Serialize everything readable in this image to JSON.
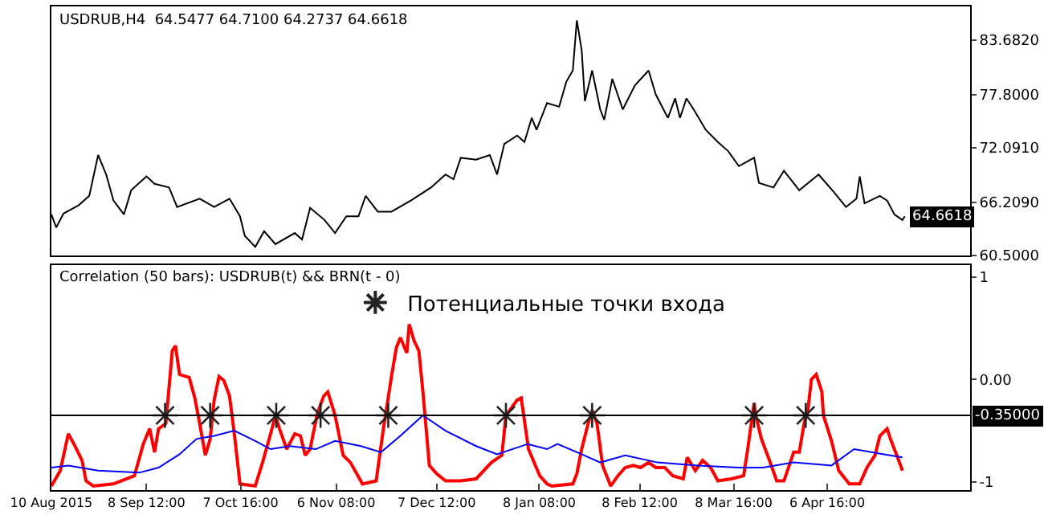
{
  "chart_data": [
    {
      "type": "line",
      "title": "USDRUB,H4  64.5477 64.7100 64.2737 64.6618",
      "color": "#000000",
      "xlim": [
        "2015-08-10",
        "2016-05-21"
      ],
      "ylim": [
        60.5,
        87.3
      ],
      "yticks": [
        {
          "value": 60.5,
          "label": "60.5000"
        },
        {
          "value": 66.209,
          "label": "66.2090"
        },
        {
          "value": 72.091,
          "label": "72.0910"
        },
        {
          "value": 77.8,
          "label": "77.8000"
        },
        {
          "value": 83.682,
          "label": "83.6820"
        }
      ],
      "tick_labels": "y",
      "legend": false,
      "x": [
        "2015-08-10T00:00",
        "2015-08-11T12:00",
        "2015-08-13T18:00",
        "2015-08-18T12:00",
        "2015-08-21T18:00",
        "2015-08-24T12:00",
        "2015-08-27T00:00",
        "2015-08-29T06:00",
        "2015-09-01T12:00",
        "2015-09-03T18:00",
        "2015-09-08T12:00",
        "2015-09-11T00:00",
        "2015-09-15T12:00",
        "2015-09-18T00:00",
        "2015-09-25T00:00",
        "2015-09-29T12:00",
        "2015-10-04T06:00",
        "2015-10-07T12:00",
        "2015-10-09T00:00",
        "2015-10-12T06:00",
        "2015-10-15T00:00",
        "2015-10-18T12:00",
        "2015-10-24T12:00",
        "2015-10-26T18:00",
        "2015-10-29T06:00",
        "2015-11-02T18:00",
        "2015-11-06T00:00",
        "2015-11-09T12:00",
        "2015-11-13T06:00",
        "2015-11-15T12:00",
        "2015-11-19T06:00",
        "2015-11-23T12:00",
        "2015-11-29T12:00",
        "2015-12-05T18:00",
        "2015-12-10T06:00",
        "2015-12-12T18:00",
        "2015-12-15T00:00",
        "2015-12-19T18:00",
        "2015-12-24T00:00",
        "2015-12-26T06:00",
        "2015-12-28T12:00",
        "2016-01-01T12:00",
        "2016-01-03T18:00",
        "2016-01-06T00:00",
        "2016-01-07T12:00",
        "2016-01-10T18:00",
        "2016-01-14T12:00",
        "2016-01-16T18:00",
        "2016-01-18T18:00",
        "2016-01-20T00:00",
        "2016-01-21T12:00",
        "2016-01-22T12:00",
        "2016-01-24T18:00",
        "2016-01-27T06:00",
        "2016-01-28T12:00",
        "2016-01-31T00:00",
        "2016-02-03T06:00",
        "2016-02-07T00:00",
        "2016-02-11T06:00",
        "2016-02-13T12:00",
        "2016-02-17T06:00",
        "2016-02-19T12:00",
        "2016-02-21T00:00",
        "2016-02-23T00:00",
        "2016-02-25T06:00",
        "2016-02-29T00:00",
        "2016-03-03T18:00",
        "2016-03-07T00:00",
        "2016-03-10T06:00",
        "2016-03-15T00:00",
        "2016-03-16T12:00",
        "2016-03-21T00:00",
        "2016-03-24T06:00",
        "2016-03-29T00:00",
        "2016-04-04T00:00",
        "2016-04-08T18:00",
        "2016-04-12T12:00",
        "2016-04-15T18:00",
        "2016-04-16T18:00",
        "2016-04-18T06:00",
        "2016-04-23T00:00",
        "2016-04-25T06:00",
        "2016-04-27T12:00",
        "2016-04-30T00:00",
        "2016-04-30T18:00"
      ],
      "values": [
        64.9,
        63.5,
        65.0,
        65.9,
        66.9,
        71.3,
        69.2,
        66.4,
        64.9,
        67.5,
        69.0,
        68.2,
        67.8,
        65.7,
        66.6,
        65.7,
        66.6,
        64.7,
        62.6,
        61.4,
        63.1,
        61.7,
        62.9,
        62.2,
        65.6,
        64.3,
        62.9,
        64.7,
        64.7,
        66.9,
        65.2,
        65.2,
        66.4,
        67.8,
        69.2,
        68.7,
        71.0,
        70.8,
        71.3,
        69.2,
        72.5,
        73.4,
        72.7,
        75.3,
        74.0,
        76.9,
        76.5,
        79.2,
        80.4,
        85.8,
        82.6,
        77.1,
        80.4,
        76.2,
        75.1,
        79.5,
        76.2,
        78.8,
        80.4,
        77.8,
        75.3,
        77.4,
        75.3,
        77.4,
        76.2,
        74.0,
        72.7,
        71.7,
        70.1,
        71.0,
        68.3,
        67.8,
        69.6,
        67.5,
        69.2,
        67.3,
        65.7,
        66.6,
        69.0,
        66.1,
        66.9,
        66.4,
        64.9,
        64.3,
        64.7
      ],
      "annotations": [
        {
          "text": "64.6618",
          "x": "2016-04-30T18:00",
          "y": 64.6618
        }
      ]
    },
    {
      "type": "line",
      "title": "Correlation (50 bars): USDRUB(t) && BRN(t - 0)",
      "xlim": [
        "2015-08-10",
        "2016-05-21"
      ],
      "ylim": [
        -1.08,
        1.12
      ],
      "yticks": [
        {
          "value": -1,
          "label": "-1"
        },
        {
          "value": 0,
          "label": "0.00"
        },
        1
      ],
      "xticks": [
        {
          "value": "2015-08-10",
          "label": "10 Aug 2015"
        },
        {
          "value": "2015-09-08T12:00",
          "label": "8 Sep 12:00"
        },
        {
          "value": "2015-10-07T16:00",
          "label": "7 Oct 16:00"
        },
        {
          "value": "2015-11-06T08:00",
          "label": "6 Nov 08:00"
        },
        {
          "value": "2015-12-07T12:00",
          "label": "7 Dec 12:00"
        },
        {
          "value": "2016-01-08T08:00",
          "label": "8 Jan 08:00"
        },
        {
          "value": "2016-02-08T12:00",
          "label": "8 Feb 12:00"
        },
        {
          "value": "2016-03-08T16:00",
          "label": "8 Mar 16:00"
        },
        {
          "value": "2016-04-06T16:00",
          "label": "6 Apr 16:00"
        }
      ],
      "legend": "top",
      "ref_lines": [
        {
          "axis": "y",
          "value": -0.35,
          "label": "-0.35000",
          "color": "#000000"
        }
      ],
      "series": [
        {
          "type": "line",
          "color": "#ff0000",
          "x": [
            "2015-08-10T00:00",
            "2015-08-12T18:00",
            "2015-08-15T06:00",
            "2015-08-17T00:00",
            "2015-08-19T12:00",
            "2015-08-20T18:00",
            "2015-08-23T00:00",
            "2015-08-29T06:00",
            "2015-09-04T18:00",
            "2015-09-07T12:00",
            "2015-09-09T12:00",
            "2015-09-11T00:00",
            "2015-09-12T06:00",
            "2015-09-14T12:00",
            "2015-09-16T12:00",
            "2015-09-17T12:00",
            "2015-09-18T18:00",
            "2015-09-21T18:00",
            "2015-09-23T12:00",
            "2015-09-25T00:00",
            "2015-09-26T18:00",
            "2015-09-28T06:00",
            "2015-09-29T12:00",
            "2015-10-01T00:00",
            "2015-10-02T12:00",
            "2015-10-04T06:00",
            "2015-10-05T18:00",
            "2015-10-07T12:00",
            "2015-10-12T06:00",
            "2015-10-14T12:00",
            "2015-10-17T00:00",
            "2015-10-18T12:00",
            "2015-10-19T18:00",
            "2015-10-22T00:00",
            "2015-10-24T12:00",
            "2015-10-26T06:00",
            "2015-10-27T18:00",
            "2015-10-29T06:00",
            "2015-10-31T12:00",
            "2015-11-02T12:00",
            "2015-11-03T18:00",
            "2015-11-06T00:00",
            "2015-11-08T12:00",
            "2015-11-10T18:00",
            "2015-11-14T12:00",
            "2015-11-18T18:00",
            "2015-11-21T00:00",
            "2015-11-23T12:00",
            "2015-11-25T00:00",
            "2015-11-26T06:00",
            "2015-11-28T06:00",
            "2015-11-29T00:00",
            "2015-11-30T12:00",
            "2015-12-02T00:00",
            "2015-12-03T06:00",
            "2015-12-05T06:00",
            "2015-12-07T12:00",
            "2015-12-10T06:00",
            "2015-12-15T00:00",
            "2015-12-19T18:00",
            "2015-12-24T12:00",
            "2015-12-27T18:00",
            "2015-12-29T00:00",
            "2016-01-01T12:00",
            "2016-01-02T18:00",
            "2016-01-05T00:00",
            "2016-01-08T12:00",
            "2016-01-10T18:00",
            "2016-01-12T06:00",
            "2016-01-18T18:00",
            "2016-01-20T00:00",
            "2016-01-21T12:00",
            "2016-01-23T12:00",
            "2016-01-24T18:00",
            "2016-01-26T06:00",
            "2016-01-28T00:00",
            "2016-01-30T12:00",
            "2016-02-01T18:00",
            "2016-02-04T00:00",
            "2016-02-06T12:00",
            "2016-02-08T18:00",
            "2016-02-11T06:00",
            "2016-02-13T12:00",
            "2016-02-16T06:00",
            "2016-02-18T18:00",
            "2016-02-22T00:00",
            "2016-02-23T06:00",
            "2016-02-25T18:00",
            "2016-02-28T00:00",
            "2016-03-01T12:00",
            "2016-03-03T18:00",
            "2016-03-08T00:00",
            "2016-03-11T18:00",
            "2016-03-13T00:00",
            "2016-03-15T00:00",
            "2016-03-15T12:00",
            "2016-03-17T06:00",
            "2016-03-19T18:00",
            "2016-03-22T00:00",
            "2016-03-24T06:00",
            "2016-03-26T18:00",
            "2016-03-27T06:00",
            "2016-03-29T00:00",
            "2016-03-30T12:00",
            "2016-03-31T18:00",
            "2016-04-01T18:00",
            "2016-04-03T06:00",
            "2016-04-05T00:00",
            "2016-04-05T12:00",
            "2016-04-08T00:00",
            "2016-04-10T06:00",
            "2016-04-13T12:00",
            "2016-04-16T18:00",
            "2016-04-19T00:00",
            "2016-04-21T12:00",
            "2016-04-23T00:00",
            "2016-04-25T06:00",
            "2016-04-26T12:00",
            "2016-04-28T12:00",
            "2016-04-30T00:00"
          ],
          "values": [
            -1.04,
            -0.89,
            -0.53,
            -0.63,
            -0.79,
            -0.99,
            -1.04,
            -1.02,
            -0.94,
            -0.63,
            -0.48,
            -0.71,
            -0.48,
            -0.43,
            0.28,
            0.33,
            0.05,
            0.02,
            -0.18,
            -0.43,
            -0.74,
            -0.58,
            -0.2,
            0.03,
            -0.01,
            -0.16,
            -0.53,
            -1.02,
            -1.04,
            -0.81,
            -0.53,
            -0.35,
            -0.48,
            -0.68,
            -0.53,
            -0.55,
            -0.74,
            -0.68,
            -0.33,
            -0.16,
            -0.12,
            -0.35,
            -0.74,
            -0.81,
            -1.02,
            -0.99,
            -0.48,
            0.03,
            0.31,
            0.41,
            0.26,
            0.54,
            0.38,
            0.28,
            -0.12,
            -0.84,
            -0.92,
            -0.99,
            -0.99,
            -0.97,
            -0.81,
            -0.74,
            -0.35,
            -0.2,
            -0.18,
            -0.68,
            -0.94,
            -1.02,
            -1.04,
            -1.02,
            -0.92,
            -0.68,
            -0.43,
            -0.3,
            -0.43,
            -0.84,
            -1.04,
            -0.94,
            -0.86,
            -0.84,
            -0.86,
            -0.81,
            -0.86,
            -0.86,
            -0.94,
            -0.97,
            -0.76,
            -0.89,
            -0.79,
            -0.86,
            -0.99,
            -0.97,
            -0.94,
            -0.68,
            -0.23,
            -0.35,
            -0.58,
            -0.79,
            -0.99,
            -0.99,
            -0.76,
            -0.71,
            -0.71,
            -0.43,
            -0.28,
            0.0,
            0.05,
            -0.12,
            -0.35,
            -0.6,
            -0.89,
            -1.02,
            -1.02,
            -0.86,
            -0.74,
            -0.55,
            -0.48,
            -0.6,
            -0.76,
            -0.89
          ]
        },
        {
          "type": "line",
          "color": "#0000ff",
          "x": [
            "2015-08-10T00:00",
            "2015-08-15T06:00",
            "2015-08-24T12:00",
            "2015-09-06T06:00",
            "2015-09-12T06:00",
            "2015-09-18T18:00",
            "2015-09-24T00:00",
            "2015-09-29T12:00",
            "2015-10-05T18:00",
            "2015-10-12T06:00",
            "2015-10-17T00:00",
            "2015-10-23T00:00",
            "2015-10-31T00:00",
            "2015-11-06T00:00",
            "2015-11-14T00:00",
            "2015-11-20T06:00",
            "2015-11-26T06:00",
            "2015-12-03T06:00",
            "2015-12-10T06:00",
            "2015-12-19T18:00",
            "2015-12-26T06:00",
            "2016-01-04T18:00",
            "2016-01-10T18:00",
            "2016-01-14T00:00",
            "2016-01-21T12:00",
            "2016-01-27T06:00",
            "2016-02-04T00:00",
            "2016-02-14T00:00",
            "2016-02-26T12:00",
            "2016-03-10T06:00",
            "2016-03-17T18:00",
            "2016-03-27T06:00",
            "2016-04-08T00:00",
            "2016-04-15T00:00",
            "2016-04-24T06:00",
            "2016-04-30T00:00"
          ],
          "values": [
            -0.86,
            -0.84,
            -0.89,
            -0.91,
            -0.86,
            -0.73,
            -0.58,
            -0.55,
            -0.5,
            -0.6,
            -0.68,
            -0.65,
            -0.68,
            -0.6,
            -0.65,
            -0.71,
            -0.55,
            -0.35,
            -0.5,
            -0.65,
            -0.73,
            -0.63,
            -0.68,
            -0.63,
            -0.73,
            -0.81,
            -0.74,
            -0.81,
            -0.84,
            -0.86,
            -0.86,
            -0.81,
            -0.84,
            -0.68,
            -0.73,
            -0.76
          ]
        },
        {
          "type": "scatter",
          "name": "Потенциальные точки входа",
          "color": "#222222",
          "marker": "cross",
          "x": [
            "2015-09-14T06:00",
            "2015-09-28T06:00",
            "2015-10-18T18:00",
            "2015-11-01T12:00",
            "2015-11-22T12:00",
            "2015-12-29T00:00",
            "2016-01-24T18:00",
            "2016-03-15T00:00",
            "2016-03-31T00:00"
          ],
          "values": [
            -0.35,
            -0.35,
            -0.35,
            -0.35,
            -0.35,
            -0.35,
            -0.35,
            -0.35,
            -0.35
          ]
        }
      ]
    }
  ]
}
